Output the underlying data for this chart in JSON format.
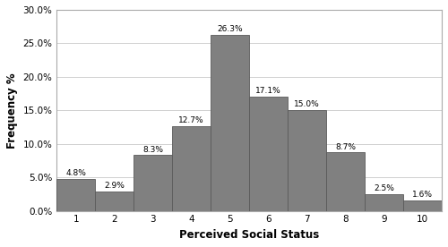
{
  "categories": [
    1,
    2,
    3,
    4,
    5,
    6,
    7,
    8,
    9,
    10
  ],
  "values": [
    4.8,
    2.9,
    8.3,
    12.7,
    26.3,
    17.1,
    15.0,
    8.7,
    2.5,
    1.6
  ],
  "labels": [
    "4.8%",
    "2.9%",
    "8.3%",
    "12.7%",
    "26.3%",
    "17.1%",
    "15.0%",
    "8.7%",
    "2.5%",
    "1.6%"
  ],
  "bar_color": "#808080",
  "bar_edgecolor": "#5a5a5a",
  "xlabel": "Perceived Social Status",
  "ylabel": "Frequency %",
  "ylim": [
    0,
    30
  ],
  "yticks": [
    0.0,
    5.0,
    10.0,
    15.0,
    20.0,
    25.0,
    30.0
  ],
  "ytick_labels": [
    "0.0%",
    "5.0%",
    "10.0%",
    "15.0%",
    "20.0%",
    "25.0%",
    "30.0%"
  ],
  "xlabel_fontsize": 8.5,
  "ylabel_fontsize": 8.5,
  "tick_fontsize": 7.5,
  "label_fontsize": 6.5,
  "background_color": "#ffffff",
  "grid_color": "#d0d0d0",
  "bar_width": 1.0,
  "fig_border_color": "#aaaaaa"
}
